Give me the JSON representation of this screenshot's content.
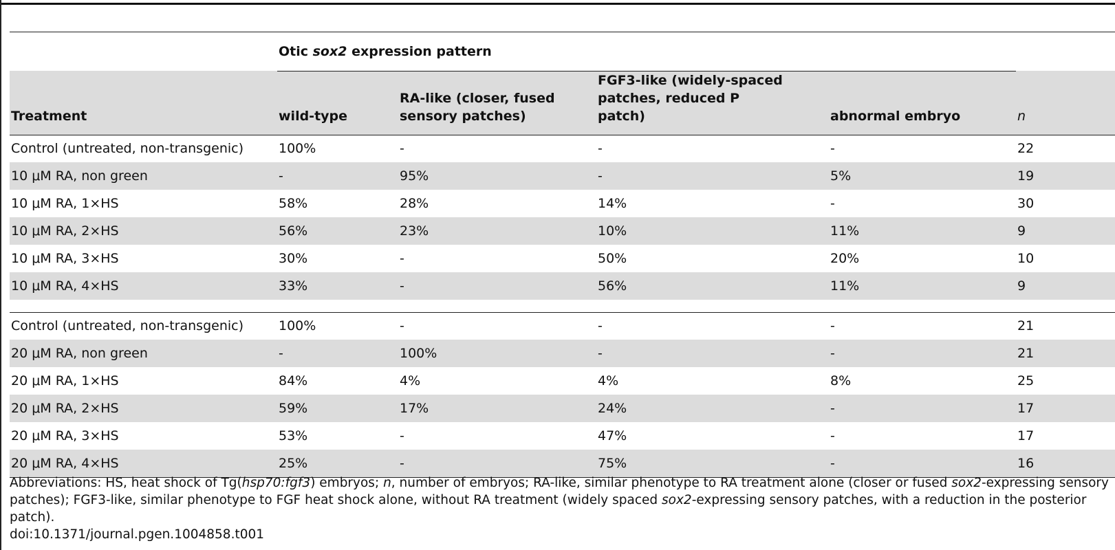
{
  "table": {
    "group_header": [
      "Otic ",
      "sox2",
      " expression pattern"
    ],
    "columns": [
      "Treatment",
      "wild-type",
      "RA-like (closer, fused sensory patches)",
      "FGF3-like (widely-spaced patches, reduced P patch)",
      "abnormal embryo",
      "n"
    ],
    "sections": [
      [
        [
          "Control (untreated, non-transgenic)",
          "100%",
          "-",
          "-",
          "-",
          "22"
        ],
        [
          "10 μM RA, non green",
          "-",
          "95%",
          "-",
          "5%",
          "19"
        ],
        [
          "10 μM RA, 1×HS",
          "58%",
          "28%",
          "14%",
          "-",
          "30"
        ],
        [
          "10 μM RA, 2×HS",
          "56%",
          "23%",
          "10%",
          "11%",
          "9"
        ],
        [
          "10 μM RA, 3×HS",
          "30%",
          "-",
          "50%",
          "20%",
          "10"
        ],
        [
          "10 μM RA, 4×HS",
          "33%",
          "-",
          "56%",
          "11%",
          "9"
        ]
      ],
      [
        [
          "Control (untreated, non-transgenic)",
          "100%",
          "-",
          "-",
          "-",
          "21"
        ],
        [
          "20 μM RA, non green",
          "-",
          "100%",
          "-",
          "-",
          "21"
        ],
        [
          "20 μM RA, 1×HS",
          "84%",
          "4%",
          "4%",
          "8%",
          "25"
        ],
        [
          "20 μM RA, 2×HS",
          "59%",
          "17%",
          "24%",
          "-",
          "17"
        ],
        [
          "20 μM RA, 3×HS",
          "53%",
          "-",
          "47%",
          "-",
          "17"
        ],
        [
          "20 μM RA, 4×HS",
          "25%",
          "-",
          "75%",
          "-",
          "16"
        ]
      ]
    ]
  },
  "footnote": {
    "abbreviations": [
      "Abbreviations: HS, heat shock of Tg(",
      "hsp70:fgf3",
      ") embryos; ",
      "n",
      ", number of embryos; RA-like, similar phenotype to RA treatment alone (closer or fused ",
      "sox2",
      "-expressing sensory patches); FGF3-like, similar phenotype to FGF heat shock alone, without RA treatment (widely spaced ",
      "sox2",
      "-expressing sensory patches, with a reduction in the posterior patch)."
    ],
    "doi": "doi:10.1371/journal.pgen.1004858.t001"
  }
}
